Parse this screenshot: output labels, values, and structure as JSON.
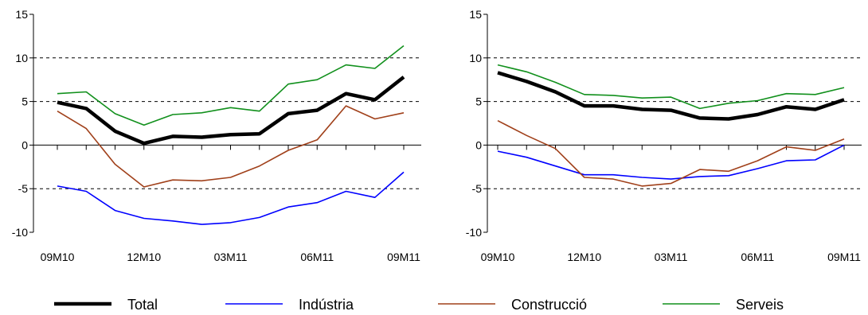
{
  "chart_data": [
    {
      "type": "line",
      "title": "",
      "xlabel": "",
      "ylabel": "",
      "ylim": [
        -10,
        15
      ],
      "yticks": [
        -10,
        -5,
        0,
        5,
        10,
        15
      ],
      "x_tick_labels": [
        "09M10",
        "12M10",
        "03M11",
        "06M11",
        "09M11"
      ],
      "x_tick_positions": [
        0,
        3,
        6,
        9,
        12
      ],
      "gridlines_y": [
        -5,
        5,
        10
      ],
      "x": [
        "09M10",
        "10M10",
        "11M10",
        "12M10",
        "01M11",
        "02M11",
        "03M11",
        "04M11",
        "05M11",
        "06M11",
        "07M11",
        "08M11",
        "09M11"
      ],
      "series": [
        {
          "name": "Total",
          "color": "#000000",
          "width": 4.5,
          "values": [
            4.9,
            4.2,
            1.6,
            0.2,
            1.0,
            0.9,
            1.2,
            1.3,
            3.6,
            4.0,
            5.9,
            5.2,
            7.8
          ]
        },
        {
          "name": "Indústria",
          "color": "#0000ff",
          "width": 1.6,
          "values": [
            -4.7,
            -5.3,
            -7.5,
            -8.4,
            -8.7,
            -9.1,
            -8.9,
            -8.3,
            -7.1,
            -6.6,
            -5.3,
            -6.0,
            -3.1
          ]
        },
        {
          "name": "Construcció",
          "color": "#a0401a",
          "width": 1.6,
          "values": [
            3.9,
            1.9,
            -2.2,
            -4.8,
            -4.0,
            -4.1,
            -3.7,
            -2.4,
            -0.6,
            0.6,
            4.5,
            3.0,
            3.7
          ]
        },
        {
          "name": "Serveis",
          "color": "#11901c",
          "width": 1.6,
          "values": [
            5.9,
            6.1,
            3.6,
            2.3,
            3.5,
            3.7,
            4.3,
            3.9,
            7.0,
            7.5,
            9.2,
            8.8,
            11.4
          ]
        }
      ]
    },
    {
      "type": "line",
      "title": "",
      "xlabel": "",
      "ylabel": "",
      "ylim": [
        -10,
        15
      ],
      "yticks": [
        -10,
        -5,
        0,
        5,
        10,
        15
      ],
      "x_tick_labels": [
        "09M10",
        "12M10",
        "03M11",
        "06M11",
        "09M11"
      ],
      "x_tick_positions": [
        0,
        3,
        6,
        9,
        12
      ],
      "gridlines_y": [
        -5,
        5,
        10
      ],
      "x": [
        "09M10",
        "10M10",
        "11M10",
        "12M10",
        "01M11",
        "02M11",
        "03M11",
        "04M11",
        "05M11",
        "06M11",
        "07M11",
        "08M11",
        "09M11"
      ],
      "series": [
        {
          "name": "Total",
          "color": "#000000",
          "width": 4.5,
          "values": [
            8.3,
            7.3,
            6.1,
            4.5,
            4.5,
            4.1,
            4.0,
            3.1,
            3.0,
            3.5,
            4.4,
            4.1,
            5.2
          ]
        },
        {
          "name": "Indústria",
          "color": "#0000ff",
          "width": 1.6,
          "values": [
            -0.7,
            -1.4,
            -2.4,
            -3.4,
            -3.4,
            -3.7,
            -3.9,
            -3.6,
            -3.5,
            -2.7,
            -1.8,
            -1.7,
            0.0
          ]
        },
        {
          "name": "Construcció",
          "color": "#a0401a",
          "width": 1.6,
          "values": [
            2.8,
            1.1,
            -0.4,
            -3.7,
            -3.9,
            -4.7,
            -4.4,
            -2.8,
            -3.0,
            -1.8,
            -0.2,
            -0.6,
            0.7
          ]
        },
        {
          "name": "Serveis",
          "color": "#11901c",
          "width": 1.6,
          "values": [
            9.2,
            8.4,
            7.2,
            5.8,
            5.7,
            5.4,
            5.5,
            4.2,
            4.8,
            5.1,
            5.9,
            5.8,
            6.6
          ]
        }
      ]
    }
  ],
  "legend": {
    "placement": "bottom",
    "items": [
      {
        "label": "Total",
        "color": "#000000"
      },
      {
        "label": "Indústria",
        "color": "#0000ff"
      },
      {
        "label": "Construcció",
        "color": "#a0401a"
      },
      {
        "label": "Serveis",
        "color": "#11901c"
      }
    ]
  }
}
